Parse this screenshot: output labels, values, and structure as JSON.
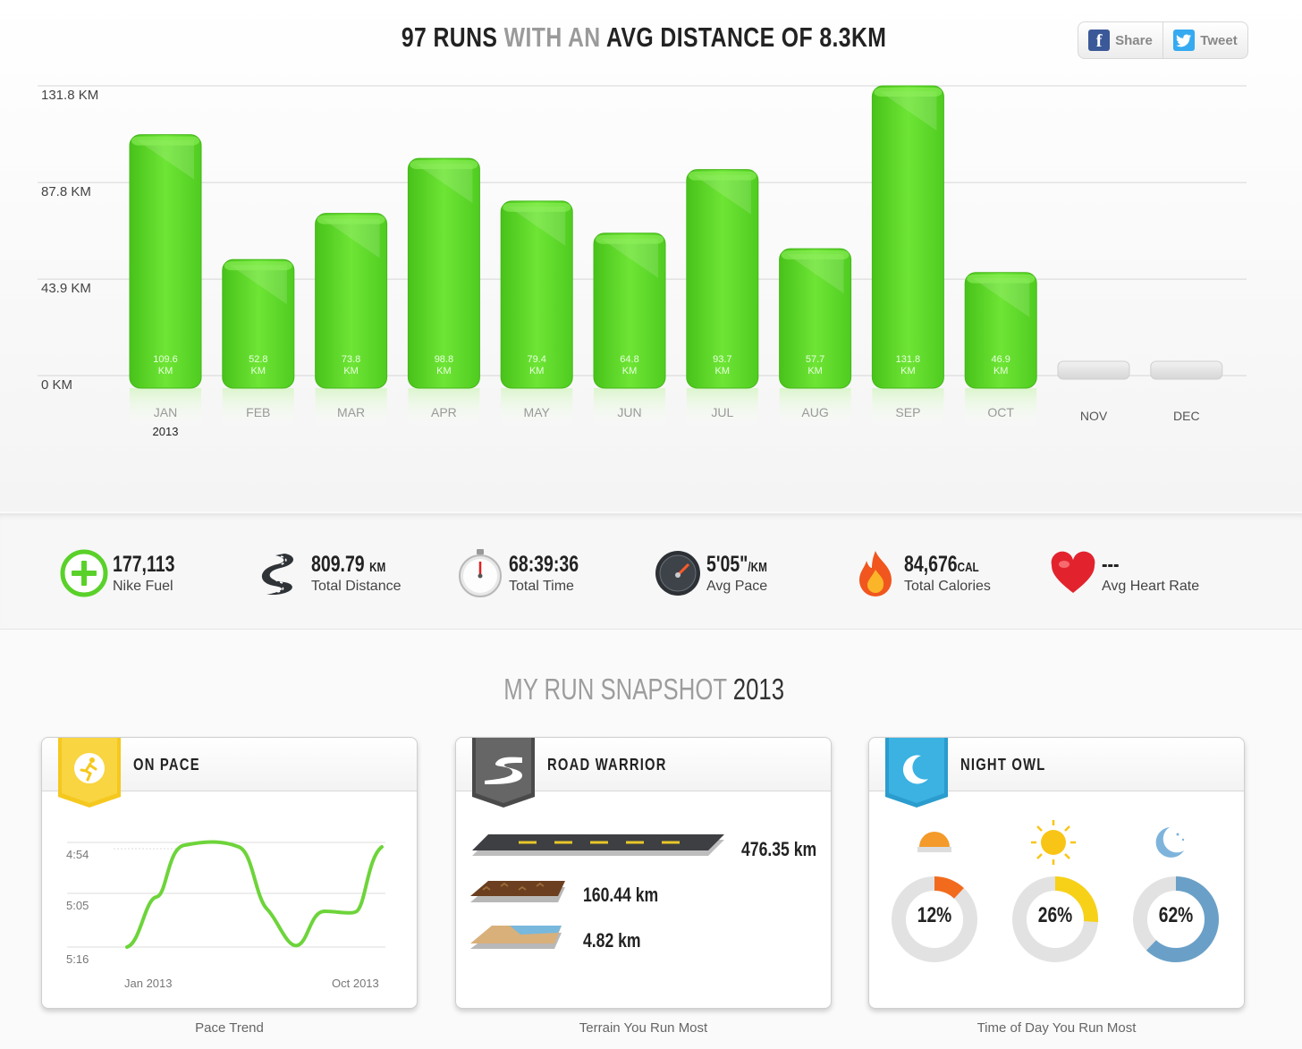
{
  "header": {
    "headline_part1": "97 RUNS",
    "headline_part2": "WITH AN",
    "headline_part3": "AVG DISTANCE OF 8.3KM",
    "share_label": "Share",
    "tweet_label": "Tweet"
  },
  "chart_data": {
    "type": "bar",
    "title": "97 RUNS WITH AN AVG DISTANCE OF 8.3KM",
    "categories": [
      "JAN",
      "FEB",
      "MAR",
      "APR",
      "MAY",
      "JUN",
      "JUL",
      "AUG",
      "SEP",
      "OCT",
      "NOV",
      "DEC"
    ],
    "values": [
      109.6,
      52.8,
      73.8,
      98.8,
      79.4,
      64.8,
      93.7,
      57.7,
      131.8,
      46.9,
      null,
      null
    ],
    "value_labels": [
      "109.6",
      "52.8",
      "73.8",
      "98.8",
      "79.4",
      "64.8",
      "93.7",
      "57.7",
      "131.8",
      "46.9",
      "",
      ""
    ],
    "value_unit": "KM",
    "y_ticks": [
      "0 KM",
      "43.9 KM",
      "87.8 KM",
      "131.8 KM"
    ],
    "y_tick_values": [
      0,
      43.9,
      87.8,
      131.8
    ],
    "ylim": [
      0,
      131.8
    ],
    "year_label": "2013",
    "grid": true,
    "bar_color": "#5ed62a"
  },
  "stats": [
    {
      "value": "177,113",
      "unit": "",
      "label": "Nike Fuel",
      "icon": "nike-fuel-icon"
    },
    {
      "value": "809.79",
      "unit": "KM",
      "label": "Total Distance",
      "icon": "road-icon"
    },
    {
      "value": "68:39:36",
      "unit": "",
      "label": "Total Time",
      "icon": "stopwatch-icon"
    },
    {
      "value": "5'05\"",
      "unit": "/KM",
      "label": "Avg Pace",
      "icon": "speedometer-icon"
    },
    {
      "value": "84,676",
      "unit": "CAL",
      "label": "Total Calories",
      "icon": "flame-icon"
    },
    {
      "value": "---",
      "unit": "",
      "label": "Avg Heart Rate",
      "icon": "heart-icon"
    }
  ],
  "snapshot": {
    "title_muted": "MY RUN SNAPSHOT",
    "year": "2013"
  },
  "cards": {
    "pace": {
      "title": "ON PACE",
      "caption": "Pace Trend",
      "y_labels": [
        "4:54",
        "5:05",
        "5:16"
      ],
      "x_start": "Jan 2013",
      "x_end": "Oct 2013",
      "badge_color": "#f5c81e"
    },
    "terrain": {
      "title": "ROAD WARRIOR",
      "caption": "Terrain You Run Most",
      "road": "476.35 km",
      "trail": "160.44 km",
      "beach": "4.82 km",
      "badge_color": "#555555"
    },
    "time_of_day": {
      "title": "NIGHT OWL",
      "caption": "Time of Day You Run Most",
      "morning": "12%",
      "day": "26%",
      "night": "62%",
      "morning_value": 12,
      "day_value": 26,
      "night_value": 62,
      "colors": {
        "morning": "#f26b1d",
        "day": "#f7d117",
        "night": "#6aa0c8"
      },
      "badge_color": "#2ea9d8"
    }
  }
}
